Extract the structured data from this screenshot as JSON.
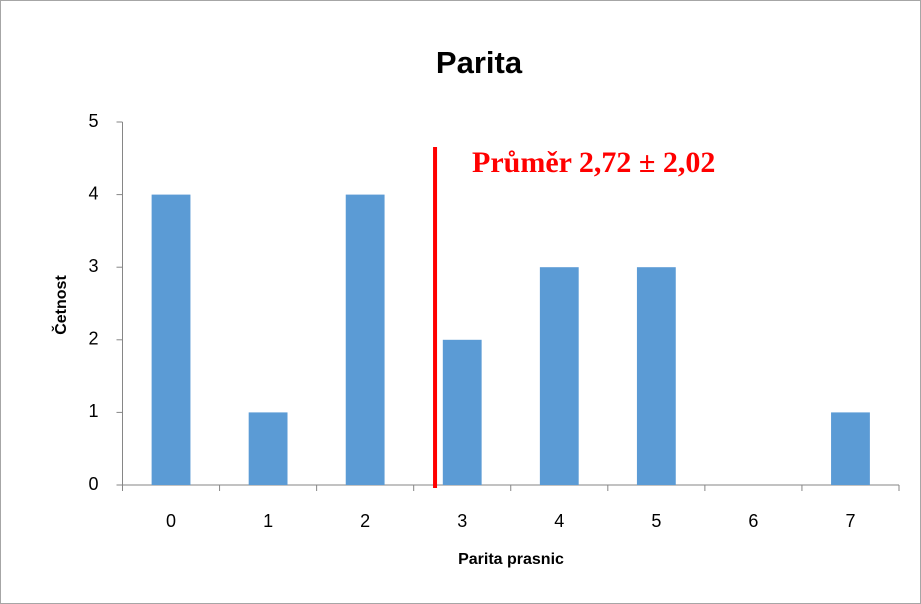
{
  "chart_data": {
    "type": "bar",
    "title": "Parita",
    "x_label": "Parita prasnic",
    "y_label": "Četnost",
    "categories": [
      "0",
      "1",
      "2",
      "3",
      "4",
      "5",
      "6",
      "7"
    ],
    "values": [
      4,
      1,
      4,
      2,
      3,
      3,
      0,
      1
    ],
    "color": "#5b9bd5",
    "ylim": [
      0,
      5
    ],
    "yticks": [
      0,
      1,
      2,
      3,
      4,
      5
    ],
    "grid": false,
    "mean": 2.72,
    "mean_color": "#ff0000",
    "annotation": "Průměr 2,72 ± 2,02"
  }
}
